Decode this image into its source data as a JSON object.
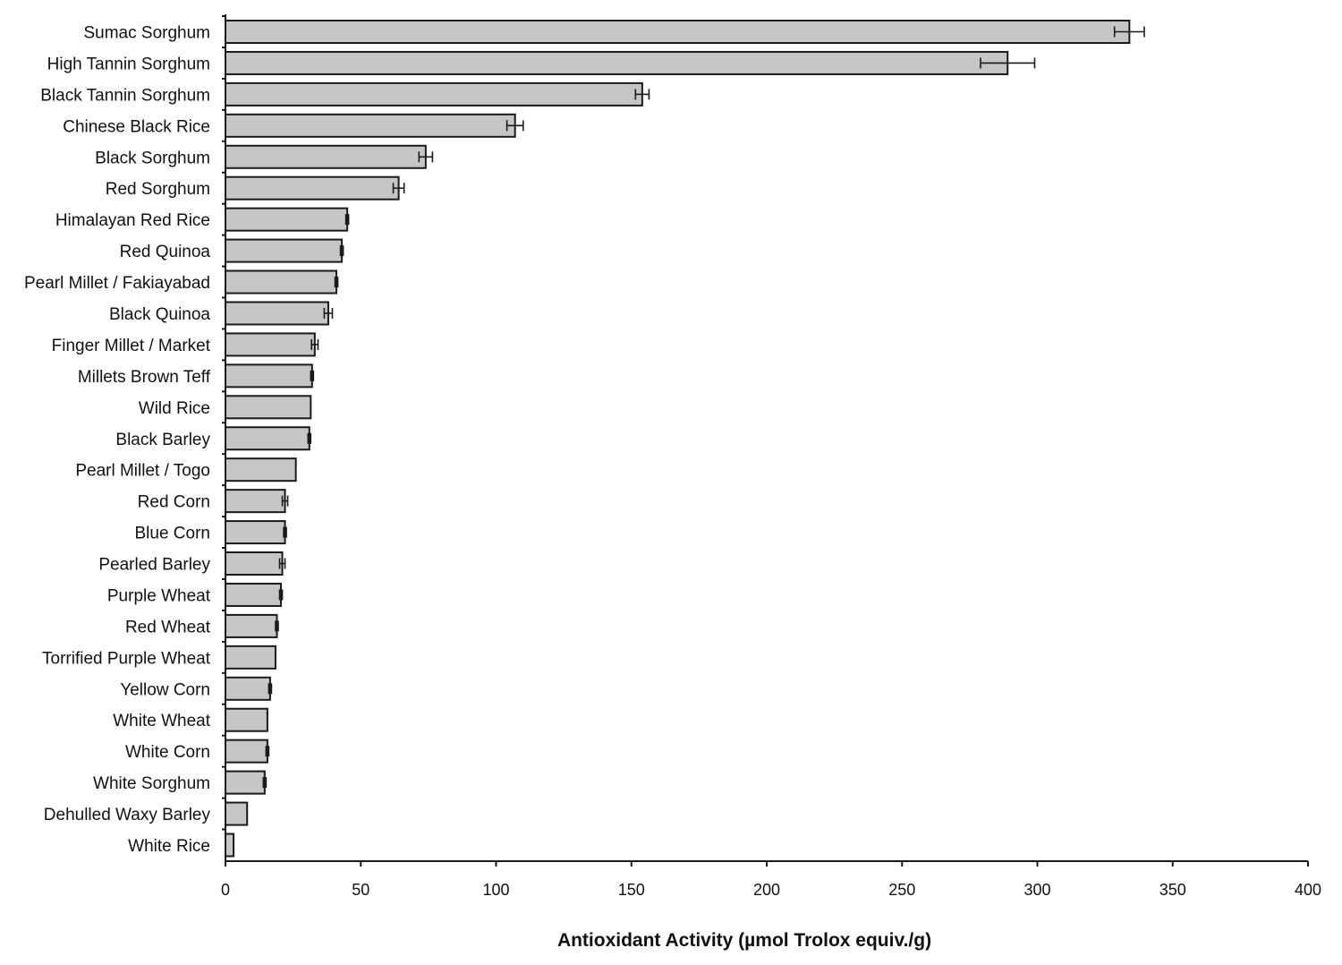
{
  "chart_data": {
    "type": "bar",
    "orientation": "horizontal",
    "title": "",
    "xlabel": "Antioxidant Activity (µmol Trolox equiv./g)",
    "ylabel": "",
    "xlim": [
      0,
      400
    ],
    "x_ticks": [
      0,
      50,
      100,
      150,
      200,
      250,
      300,
      350,
      400
    ],
    "grid": false,
    "legend": "none",
    "colors": {
      "bar_fill": "#c6c6c6",
      "bar_stroke": "#1a1a1a",
      "axis": "#1a1a1a",
      "error_bar": "#1a1a1a"
    },
    "categories": [
      "Sumac Sorghum",
      "High Tannin Sorghum",
      "Black Tannin Sorghum",
      "Chinese Black Rice",
      "Black Sorghum",
      "Red Sorghum",
      "Himalayan Red Rice",
      "Red Quinoa",
      "Pearl Millet / Fakiayabad",
      "Black Quinoa",
      "Finger Millet / Market",
      "Millets Brown Teff",
      "Wild Rice",
      "Black Barley",
      "Pearl Millet / Togo",
      "Red Corn",
      "Blue Corn",
      "Pearled Barley",
      "Purple Wheat",
      "Red Wheat",
      "Torrified Purple Wheat",
      "Yellow Corn",
      "White Wheat",
      "White Corn",
      "White Sorghum",
      "Dehulled Waxy Barley",
      "White Rice"
    ],
    "values": [
      334,
      289,
      154,
      107,
      74,
      64,
      45,
      43,
      41,
      38,
      33,
      32,
      31.5,
      31,
      26,
      22,
      22,
      21,
      20.5,
      19,
      18.5,
      16.5,
      15.5,
      15.5,
      14.5,
      8,
      3
    ],
    "errors": [
      5.5,
      10,
      2.5,
      3,
      2.5,
      2,
      0.5,
      0.5,
      0.5,
      1.5,
      1.2,
      0.5,
      0,
      0.5,
      0,
      1,
      0.5,
      1,
      0.5,
      0.5,
      0,
      0.5,
      0,
      0.5,
      0.5,
      0,
      0
    ]
  }
}
